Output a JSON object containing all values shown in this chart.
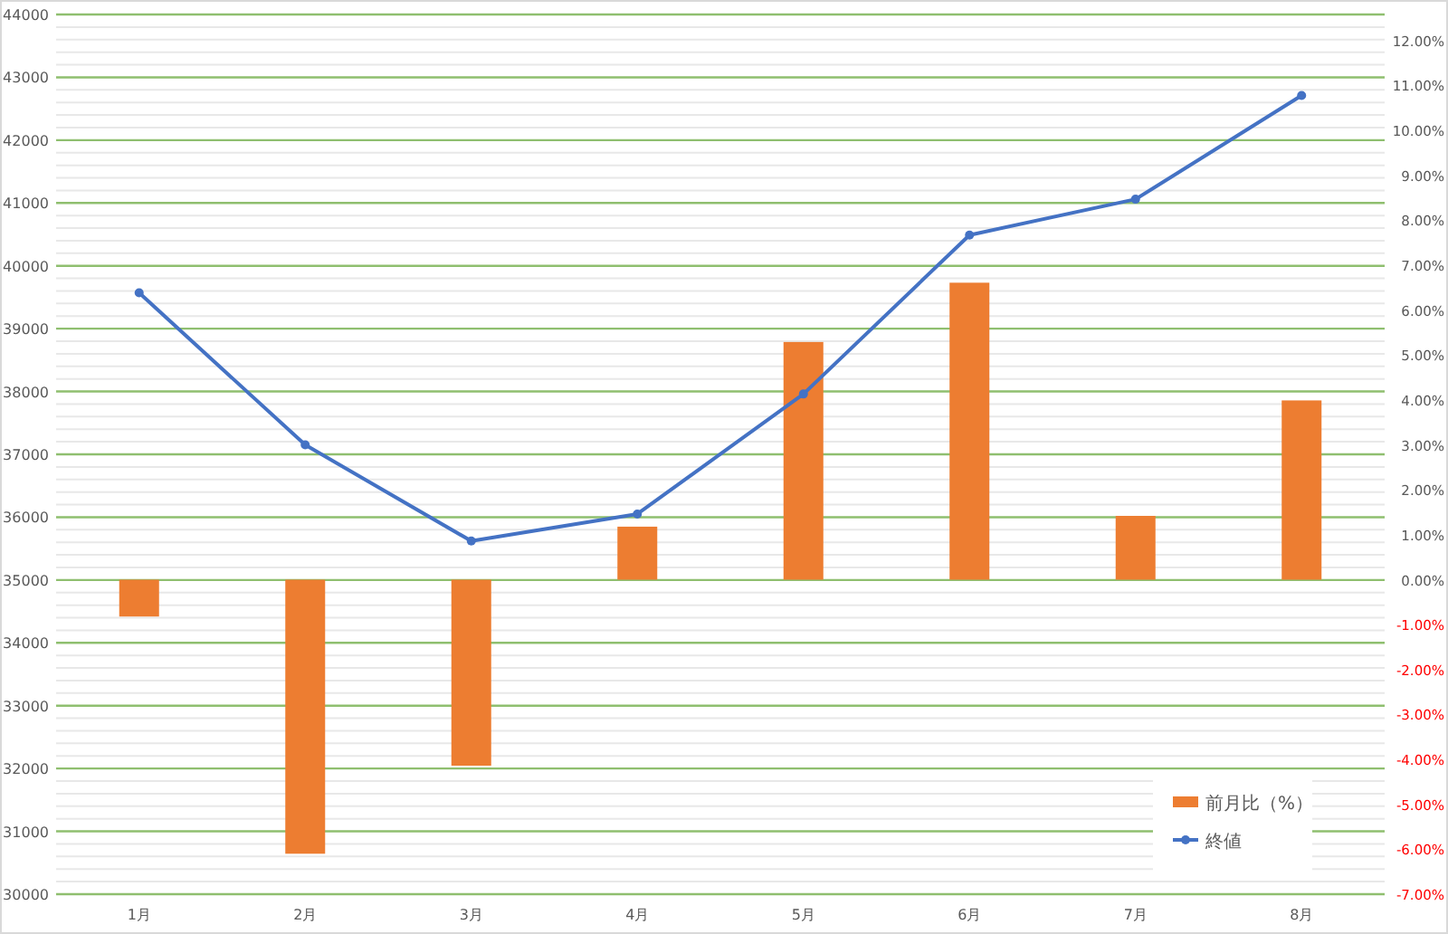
{
  "chart_data": {
    "type": "bar",
    "categories": [
      "1月",
      "2月",
      "3月",
      "4月",
      "5月",
      "6月",
      "7月",
      "8月"
    ],
    "series": [
      {
        "name": "前月比（%）",
        "axis": "y2",
        "color": "#ed7d31",
        "values": [
          -0.82,
          -6.1,
          -4.14,
          1.18,
          5.29,
          6.61,
          1.42,
          3.99
        ]
      },
      {
        "name": "終値",
        "type": "line",
        "color": "#4472c4",
        "values": [
          39570,
          37150,
          35620,
          36050,
          37960,
          40490,
          41060,
          42710
        ]
      }
    ],
    "ylim": [
      30000,
      44000
    ],
    "yticks": [
      30000,
      31000,
      32000,
      33000,
      34000,
      35000,
      36000,
      37000,
      38000,
      39000,
      40000,
      41000,
      42000,
      43000,
      44000
    ],
    "y2lim": [
      -7,
      12.58
    ],
    "y2ticks": [
      {
        "value": -7,
        "label": "-7.00%"
      },
      {
        "value": -6,
        "label": "-6.00%"
      },
      {
        "value": -5,
        "label": "-5.00%"
      },
      {
        "value": -4,
        "label": "-4.00%"
      },
      {
        "value": -3,
        "label": "-3.00%"
      },
      {
        "value": -2,
        "label": "-2.00%"
      },
      {
        "value": -1,
        "label": "-1.00%"
      },
      {
        "value": 0,
        "label": "0.00%"
      },
      {
        "value": 1,
        "label": "1.00%"
      },
      {
        "value": 2,
        "label": "2.00%"
      },
      {
        "value": 3,
        "label": "3.00%"
      },
      {
        "value": 4,
        "label": "4.00%"
      },
      {
        "value": 5,
        "label": "5.00%"
      },
      {
        "value": 6,
        "label": "6.00%"
      },
      {
        "value": 7,
        "label": "7.00%"
      },
      {
        "value": 8,
        "label": "8.00%"
      },
      {
        "value": 9,
        "label": "9.00%"
      },
      {
        "value": 10,
        "label": "10.00%"
      },
      {
        "value": 11,
        "label": "11.00%"
      },
      {
        "value": 12,
        "label": "12.00%"
      }
    ],
    "grid": "y",
    "legend": "bottom right",
    "marker": "circle",
    "line_style": "solid"
  }
}
